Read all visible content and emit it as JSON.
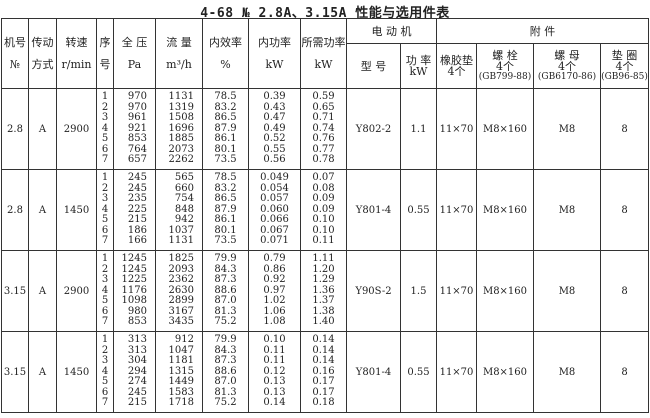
{
  "title": "4-68 № 2.8A、3.15A 性能与选用件表",
  "header": {
    "machine_no": [
      "机号",
      "№"
    ],
    "drive": [
      "传动",
      "方式"
    ],
    "speed": [
      "转速",
      "r/min"
    ],
    "seq": [
      "序",
      "号"
    ],
    "pressure": [
      "全 压",
      "Pa"
    ],
    "flow": [
      "流 量",
      "m³/h"
    ],
    "efficiency": [
      "内效率",
      "%"
    ],
    "internal_power": [
      "内功率",
      "kW"
    ],
    "required_power": [
      "所需功率",
      "kW"
    ],
    "motor": "电 动 机",
    "motor_model": "型 号",
    "motor_power": [
      "功 率",
      "kW"
    ],
    "accessories": "附 件",
    "rubber_pad": [
      "橡胶垫",
      "4个"
    ],
    "bolt": [
      "螺 栓",
      "4个",
      "(GB799-88)"
    ],
    "nut": [
      "螺 母",
      "4个",
      "(GB6170-86)"
    ],
    "washer": [
      "垫 圈",
      "4个",
      "(GB96-85)"
    ]
  },
  "groups": [
    {
      "machine_no": "2.8",
      "drive": "A",
      "speed": "2900",
      "seq": [
        "1",
        "2",
        "3",
        "4",
        "5",
        "6",
        "7"
      ],
      "pressure": [
        "970",
        "970",
        "961",
        "921",
        "853",
        "764",
        "657"
      ],
      "flow": [
        "1131",
        "1319",
        "1508",
        "1696",
        "1885",
        "2073",
        "2262"
      ],
      "efficiency": [
        "78.5",
        "83.2",
        "86.5",
        "87.9",
        "86.1",
        "80.1",
        "73.5"
      ],
      "internal_power": [
        "0.39",
        "0.43",
        "0.47",
        "0.49",
        "0.52",
        "0.55",
        "0.56"
      ],
      "required_power": [
        "0.59",
        "0.65",
        "0.71",
        "0.74",
        "0.76",
        "0.77",
        "0.78"
      ],
      "motor_model": "Y802-2",
      "motor_power": "1.1",
      "rubber_pad": "11×70",
      "bolt": "M8×160",
      "nut": "M8",
      "washer": "8"
    },
    {
      "machine_no": "2.8",
      "drive": "A",
      "speed": "1450",
      "seq": [
        "1",
        "2",
        "3",
        "4",
        "5",
        "6",
        "7"
      ],
      "pressure": [
        "245",
        "245",
        "235",
        "225",
        "215",
        "186",
        "166"
      ],
      "flow": [
        "565",
        "660",
        "754",
        "848",
        "942",
        "1037",
        "1131"
      ],
      "efficiency": [
        "78.5",
        "83.2",
        "86.5",
        "87.9",
        "86.1",
        "80.1",
        "73.5"
      ],
      "internal_power": [
        "0.049",
        "0.054",
        "0.057",
        "0.060",
        "0.066",
        "0.067",
        "0.071"
      ],
      "required_power": [
        "0.07",
        "0.08",
        "0.09",
        "0.09",
        "0.10",
        "0.10",
        "0.11"
      ],
      "motor_model": "Y801-4",
      "motor_power": "0.55",
      "rubber_pad": "11×70",
      "bolt": "M8×160",
      "nut": "M8",
      "washer": "8"
    },
    {
      "machine_no": "3.15",
      "drive": "A",
      "speed": "2900",
      "seq": [
        "1",
        "2",
        "3",
        "4",
        "5",
        "6",
        "7"
      ],
      "pressure": [
        "1245",
        "1245",
        "1225",
        "1176",
        "1098",
        "980",
        "853"
      ],
      "flow": [
        "1825",
        "2093",
        "2362",
        "2630",
        "2899",
        "3167",
        "3435"
      ],
      "efficiency": [
        "79.9",
        "84.3",
        "87.3",
        "88.6",
        "87.0",
        "81.3",
        "75.2"
      ],
      "internal_power": [
        "0.79",
        "0.86",
        "0.92",
        "0.97",
        "1.02",
        "1.06",
        "1.08"
      ],
      "required_power": [
        "1.11",
        "1.20",
        "1.29",
        "1.36",
        "1.37",
        "1.38",
        "1.40"
      ],
      "motor_model": "Y90S-2",
      "motor_power": "1.5",
      "rubber_pad": "11×70",
      "bolt": "M8×160",
      "nut": "M8",
      "washer": "8"
    },
    {
      "machine_no": "3.15",
      "drive": "A",
      "speed": "1450",
      "seq": [
        "1",
        "2",
        "3",
        "4",
        "5",
        "6",
        "7"
      ],
      "pressure": [
        "313",
        "313",
        "304",
        "294",
        "274",
        "245",
        "215"
      ],
      "flow": [
        "912",
        "1047",
        "1181",
        "1315",
        "1449",
        "1583",
        "1718"
      ],
      "efficiency": [
        "79.9",
        "84.3",
        "87.3",
        "88.6",
        "87.0",
        "81.3",
        "75.2"
      ],
      "internal_power": [
        "0.10",
        "0.11",
        "0.11",
        "0.12",
        "0.13",
        "0.13",
        "0.14"
      ],
      "required_power": [
        "0.14",
        "0.14",
        "0.14",
        "0.16",
        "0.17",
        "0.17",
        "0.18"
      ],
      "motor_model": "Y801-4",
      "motor_power": "0.55",
      "rubber_pad": "11×70",
      "bolt": "M8×160",
      "nut": "M8",
      "washer": "8"
    }
  ]
}
